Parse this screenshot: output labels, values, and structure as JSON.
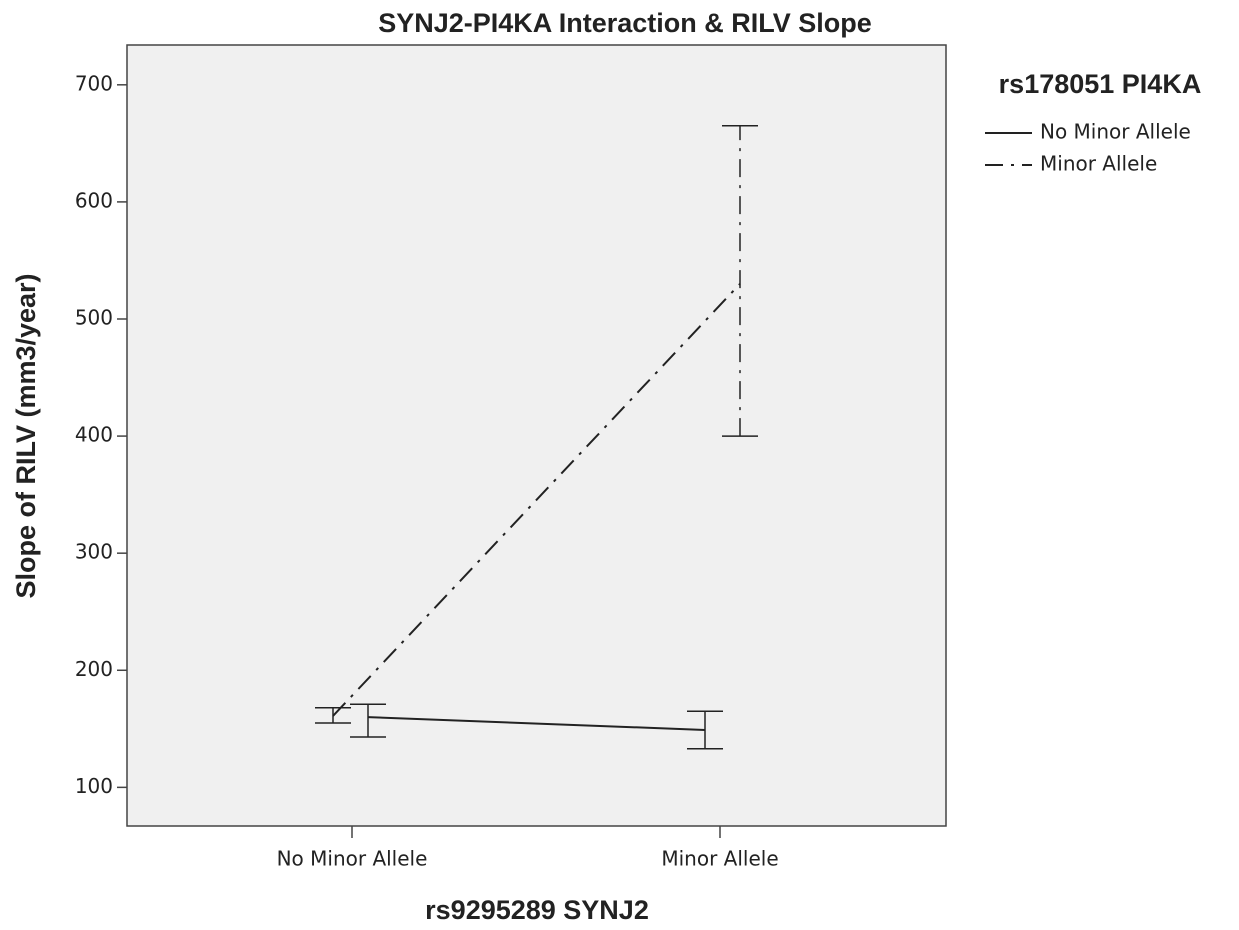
{
  "chart_data": {
    "type": "line",
    "title": "SYNJ2-PI4KA Interaction & RILV Slope",
    "x_label": "rs9295289 SYNJ2",
    "y_label": "Slope of RILV (mm3/year)",
    "legend_title": "rs178051 PI4KA",
    "legend": "right",
    "categories": [
      "No Minor Allele",
      "Minor Allele"
    ],
    "series": [
      {
        "name": "No Minor Allele",
        "color": "#222222",
        "linestyle": "solid",
        "values": [
          160,
          149
        ],
        "error_low": [
          143,
          133
        ],
        "error_high": [
          171,
          165
        ]
      },
      {
        "name": "Minor Allele",
        "color": "#222222",
        "linestyle": "dashdot",
        "values": [
          161,
          530
        ],
        "error_low": [
          155,
          400
        ],
        "error_high": [
          168,
          665
        ]
      }
    ],
    "ylim": [
      67,
      734
    ],
    "yticks": [
      100,
      200,
      300,
      400,
      500,
      600,
      700
    ]
  }
}
